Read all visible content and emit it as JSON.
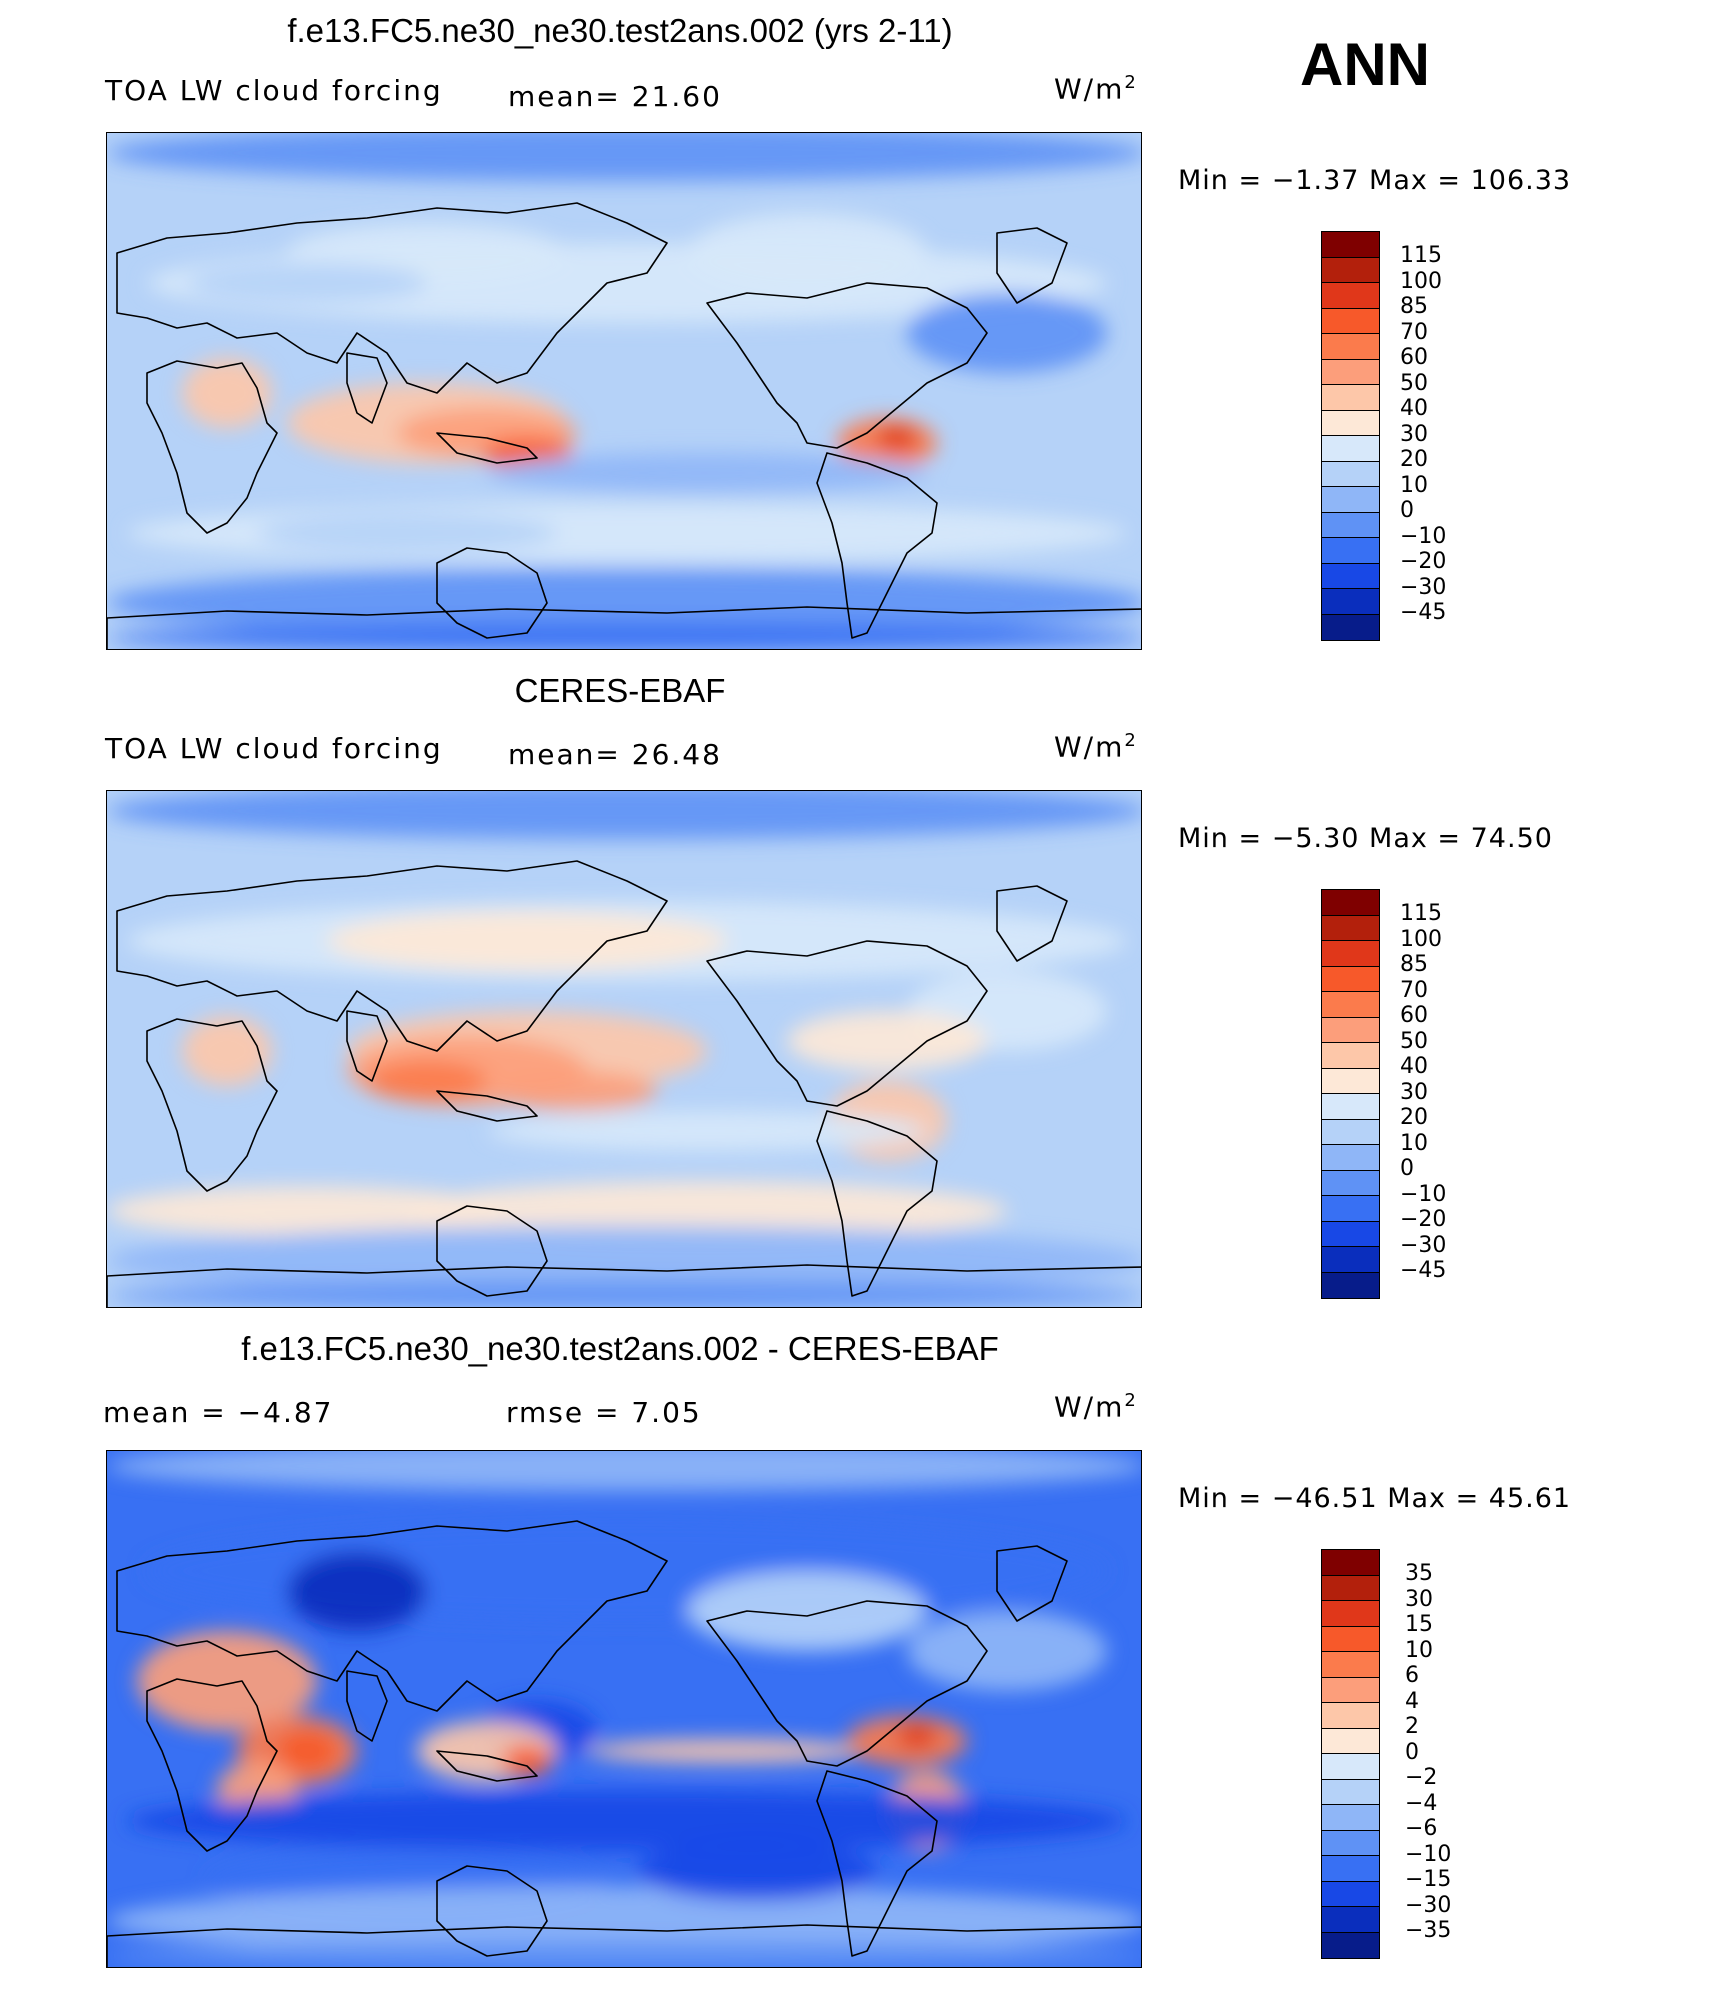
{
  "season": "ANN",
  "units_label": "W/m",
  "units_sup": "2",
  "panels": [
    {
      "title": "f.e13.FC5.ne30_ne30.test2ans.002 (yrs 2-11)",
      "left_label": "TOA LW cloud forcing",
      "mid_label": "mean=   21.60",
      "minmax": "Min  =    −1.37  Max  =  106.33",
      "colorbar_ticks": [
        "115",
        "100",
        "85",
        "70",
        "60",
        "50",
        "40",
        "30",
        "20",
        "10",
        "0",
        "−10",
        "−20",
        "−30",
        "−45"
      ]
    },
    {
      "title": "CERES-EBAF",
      "left_label": "TOA LW cloud forcing",
      "mid_label": "mean=   26.48",
      "minmax": "Min  =    −5.30  Max  =    74.50",
      "colorbar_ticks": [
        "115",
        "100",
        "85",
        "70",
        "60",
        "50",
        "40",
        "30",
        "20",
        "10",
        "0",
        "−10",
        "−20",
        "−30",
        "−45"
      ]
    },
    {
      "title": "f.e13.FC5.ne30_ne30.test2ans.002 - CERES-EBAF",
      "left_label": "mean  =    −4.87",
      "mid_label": "rmse  =     7.05",
      "minmax": "Min  =  −46.51  Max  =    45.61",
      "colorbar_ticks": [
        "35",
        "30",
        "15",
        "10",
        "6",
        "4",
        "2",
        "0",
        "−2",
        "−4",
        "−6",
        "−10",
        "−15",
        "−30",
        "−35"
      ]
    }
  ],
  "colors": {
    "palette": [
      "#7f0000",
      "#b3200c",
      "#e0371a",
      "#f7592a",
      "#fb7b4c",
      "#fc9e7b",
      "#fdc7a9",
      "#fde8d7",
      "#d7e8fa",
      "#b5d2f8",
      "#8fb6f7",
      "#5f92f5",
      "#3870f3",
      "#1848e6",
      "#0a2ebd",
      "#071c8a",
      "#000e80"
    ],
    "cbar_main": [
      "#7f0000",
      "#b3200c",
      "#e0371a",
      "#f7592a",
      "#fb7b4c",
      "#fc9e7b",
      "#fdc7a9",
      "#fde8d7",
      "#d7e8fa",
      "#b5d2f8",
      "#8fb6f7",
      "#5f92f5",
      "#3870f3",
      "#1848e6",
      "#0a2ebd",
      "#071c8a"
    ],
    "cbar_diff": [
      "#7f0000",
      "#b3200c",
      "#e0371a",
      "#f7592a",
      "#fb7b4c",
      "#fc9e7b",
      "#fdc7a9",
      "#fde8d7",
      "#d7e8fa",
      "#b5d2f8",
      "#8fb6f7",
      "#5f92f5",
      "#3870f3",
      "#1848e6",
      "#0a2ebd",
      "#071c8a"
    ]
  }
}
